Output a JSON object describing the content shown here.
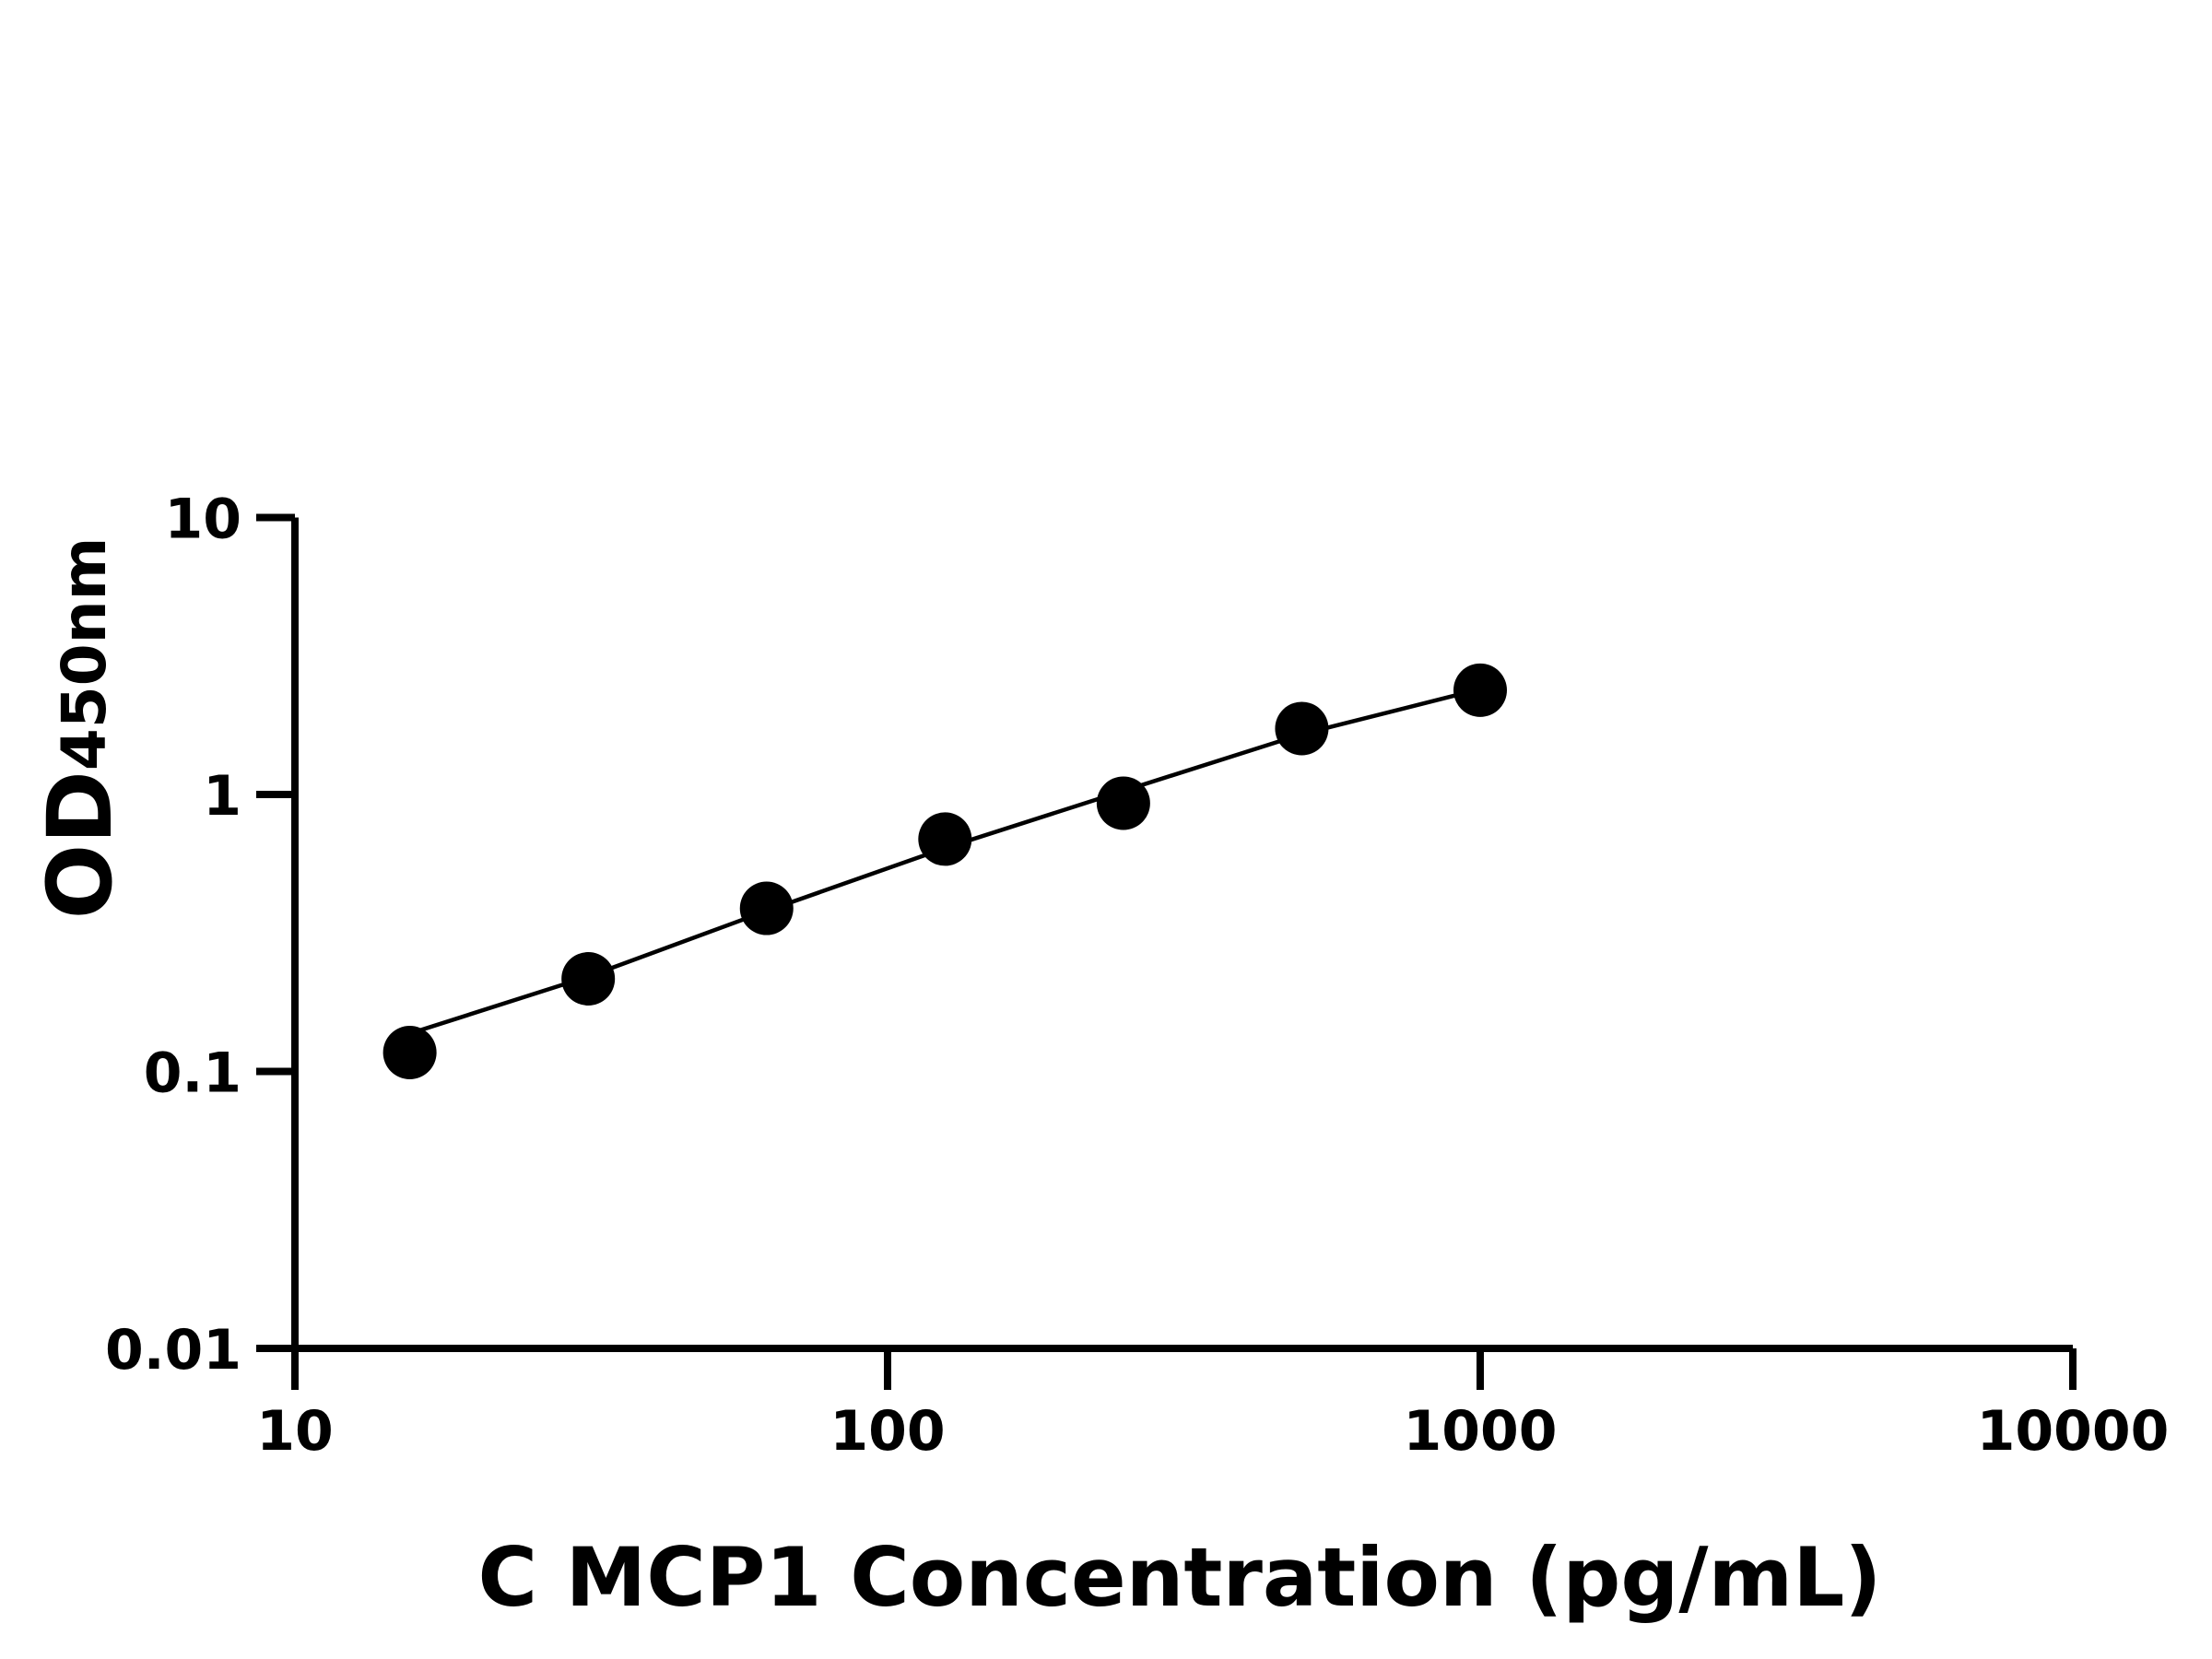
{
  "chart_data": {
    "type": "scatter",
    "xlabel": "C MCP1 Concentration (pg/mL)",
    "ylabel_main": "OD",
    "ylabel_sub": "450nm",
    "x_scale": "log",
    "y_scale": "log",
    "xlim": [
      10,
      10000
    ],
    "ylim": [
      0.01,
      10
    ],
    "x_ticks": [
      "10",
      "100",
      "1000",
      "10000"
    ],
    "y_ticks": [
      "0.01",
      "0.1",
      "1",
      "10"
    ],
    "grid": false,
    "series": [
      {
        "type": "scatter",
        "x": [
          15.625,
          31.25,
          62.5,
          125,
          250,
          500,
          1000
        ],
        "y": [
          0.117,
          0.216,
          0.388,
          0.69,
          0.93,
          1.73,
          2.38
        ]
      },
      {
        "type": "line",
        "x": [
          15.625,
          31.25,
          62.5,
          125,
          250,
          500,
          1000
        ],
        "y": [
          0.137,
          0.22,
          0.38,
          0.64,
          1.03,
          1.65,
          2.4
        ]
      }
    ],
    "colors": {
      "marks": "#000000"
    }
  }
}
